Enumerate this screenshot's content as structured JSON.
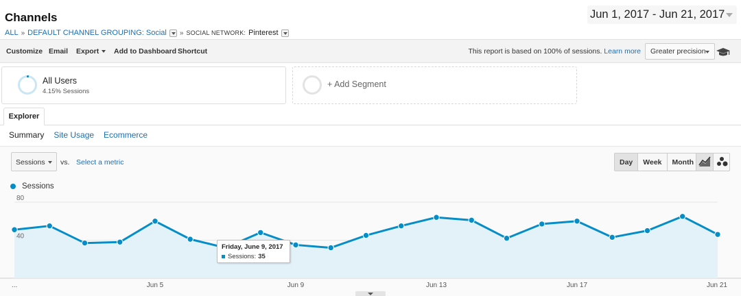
{
  "header": {
    "title": "Channels",
    "breadcrumb": {
      "all": "ALL",
      "sep1": "»",
      "grouping": "DEFAULT CHANNEL GROUPING: Social",
      "sep2": "»",
      "network_label": "SOCIAL NETWORK:",
      "network_value": "Pinterest"
    },
    "date_range": "Jun 1, 2017 - Jun 21, 2017"
  },
  "toolbar": {
    "customize": "Customize",
    "email": "Email",
    "export": "Export",
    "add_to_dashboard": "Add to Dashboard",
    "shortcut": "Shortcut",
    "sampling_note": "This report is based on 100% of sessions.",
    "learn_more": "Learn more",
    "precision": "Greater precision",
    "icons": {
      "help": "graduation-cap-icon"
    }
  },
  "segments": {
    "all_users": {
      "name": "All Users",
      "sub": "4.15% Sessions"
    },
    "add_segment": "+ Add Segment"
  },
  "tabs": {
    "explorer": "Explorer",
    "subtabs": {
      "summary": "Summary",
      "site_usage": "Site Usage",
      "ecommerce": "Ecommerce"
    }
  },
  "controls": {
    "metric": "Sessions",
    "vs": "vs.",
    "select_metric": "Select a metric",
    "granularity": {
      "day": "Day",
      "week": "Week",
      "month": "Month"
    }
  },
  "colors": {
    "series": "#058dc7",
    "fill": "#e3f1f9",
    "accent_link": "#1a6fb5"
  },
  "tooltip": {
    "date": "Friday, June 9, 2017",
    "label": "Sessions:",
    "value": "35"
  },
  "chart_data": {
    "type": "area",
    "legend": "Sessions",
    "y_ticks": [
      "80",
      "40"
    ],
    "ylim": [
      0,
      80
    ],
    "x_ticks": [
      {
        "index": 0,
        "label": "..."
      },
      {
        "index": 4,
        "label": "Jun 5"
      },
      {
        "index": 8,
        "label": "Jun 9"
      },
      {
        "index": 12,
        "label": "Jun 13"
      },
      {
        "index": 16,
        "label": "Jun 17"
      },
      {
        "index": 20,
        "label": "Jun 21"
      }
    ],
    "x": [
      "Jun 1",
      "Jun 2",
      "Jun 3",
      "Jun 4",
      "Jun 5",
      "Jun 6",
      "Jun 7",
      "Jun 8",
      "Jun 9",
      "Jun 10",
      "Jun 11",
      "Jun 12",
      "Jun 13",
      "Jun 14",
      "Jun 15",
      "Jun 16",
      "Jun 17",
      "Jun 18",
      "Jun 19",
      "Jun 20",
      "Jun 21"
    ],
    "series": [
      {
        "name": "Sessions",
        "values": [
          51,
          55,
          37,
          38,
          60,
          41,
          32,
          48,
          35,
          32,
          45,
          55,
          64,
          61,
          42,
          57,
          60,
          43,
          50,
          65,
          46
        ]
      }
    ]
  }
}
